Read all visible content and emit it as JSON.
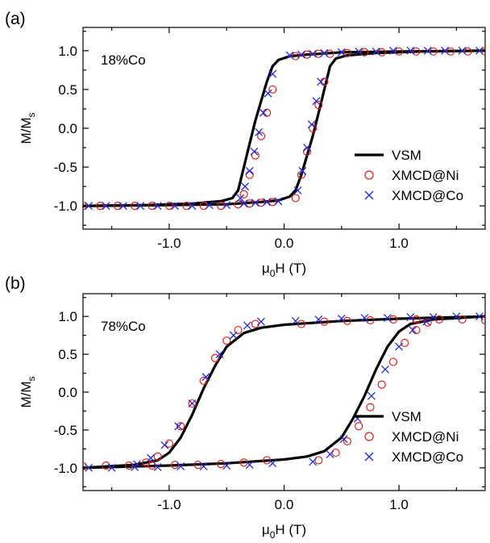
{
  "chart_data": [
    {
      "panel_label": "(a)",
      "type": "scatter",
      "annotation": "18%Co",
      "xlabel_main": "μ",
      "xlabel_sub": "0",
      "xlabel_rest": "H (T)",
      "ylabel_main": "M/M",
      "ylabel_sub": "s",
      "xlim": [
        -1.75,
        1.75
      ],
      "ylim": [
        -1.3,
        1.3
      ],
      "xticks": [
        -1.0,
        0.0,
        1.0
      ],
      "xtick_labels": [
        "-1.0",
        "0.0",
        "1.0"
      ],
      "yticks": [
        -1.0,
        -0.5,
        0.0,
        0.5,
        1.0
      ],
      "ytick_labels": [
        "-1.0",
        "-0.5",
        "0.0",
        "0.5",
        "1.0"
      ],
      "legend_position": "lower-right",
      "series": [
        {
          "name": "VSM",
          "style": "line",
          "color": "#000000",
          "descending": [
            [
              1.75,
              1.0
            ],
            [
              1.0,
              0.99
            ],
            [
              0.5,
              0.98
            ],
            [
              0.2,
              0.95
            ],
            [
              0.05,
              0.93
            ],
            [
              -0.05,
              0.88
            ],
            [
              -0.1,
              0.8
            ],
            [
              -0.15,
              0.6
            ],
            [
              -0.2,
              0.35
            ],
            [
              -0.25,
              0.1
            ],
            [
              -0.3,
              -0.2
            ],
            [
              -0.35,
              -0.5
            ],
            [
              -0.4,
              -0.8
            ],
            [
              -0.45,
              -0.9
            ],
            [
              -0.55,
              -0.94
            ],
            [
              -0.8,
              -0.97
            ],
            [
              -1.2,
              -0.99
            ],
            [
              -1.75,
              -1.0
            ]
          ],
          "ascending": [
            [
              -1.75,
              -1.0
            ],
            [
              -1.0,
              -0.99
            ],
            [
              -0.5,
              -0.98
            ],
            [
              -0.2,
              -0.95
            ],
            [
              -0.05,
              -0.93
            ],
            [
              0.05,
              -0.88
            ],
            [
              0.1,
              -0.8
            ],
            [
              0.15,
              -0.6
            ],
            [
              0.2,
              -0.35
            ],
            [
              0.25,
              -0.1
            ],
            [
              0.3,
              0.2
            ],
            [
              0.35,
              0.5
            ],
            [
              0.4,
              0.8
            ],
            [
              0.45,
              0.9
            ],
            [
              0.55,
              0.94
            ],
            [
              0.8,
              0.97
            ],
            [
              1.2,
              0.99
            ],
            [
              1.75,
              1.0
            ]
          ]
        },
        {
          "name": "XMCD@Ni",
          "style": "open-circle",
          "color": "#e0201b",
          "x": [
            1.75,
            1.6,
            1.45,
            1.3,
            1.15,
            1.0,
            0.85,
            0.7,
            0.55,
            0.4,
            0.3,
            0.2,
            0.1,
            -0.1,
            -0.15,
            -0.2,
            -0.25,
            -0.3,
            -0.35,
            -1.75,
            -1.6,
            -1.45,
            -1.3,
            -1.15,
            -1.0,
            -0.85,
            -0.7,
            -0.55,
            -0.4,
            -0.3,
            -0.2,
            -0.1,
            0.1,
            0.15,
            0.2,
            0.25,
            0.3,
            0.35
          ],
          "y": [
            0.99,
            0.99,
            0.99,
            0.99,
            0.99,
            0.99,
            0.98,
            0.98,
            0.97,
            0.96,
            0.96,
            0.95,
            0.93,
            0.5,
            0.2,
            -0.1,
            -0.35,
            -0.6,
            -0.85,
            -1.0,
            -1.0,
            -1.0,
            -1.0,
            -1.0,
            -1.0,
            -1.0,
            -1.0,
            -1.0,
            -0.98,
            -0.97,
            -0.96,
            -0.95,
            -0.9,
            -0.6,
            -0.3,
            0.0,
            0.3,
            0.6
          ]
        },
        {
          "name": "XMCD@Co",
          "style": "cross",
          "color": "#1f2bd6",
          "x": [
            1.7,
            1.55,
            1.4,
            1.25,
            1.1,
            0.95,
            0.8,
            0.65,
            0.5,
            0.35,
            0.25,
            0.15,
            0.05,
            -0.1,
            -0.14,
            -0.18,
            -0.22,
            -0.26,
            -0.3,
            -0.34,
            -0.38,
            -1.7,
            -1.55,
            -1.4,
            -1.25,
            -1.1,
            -0.95,
            -0.8,
            -0.65,
            -0.5,
            -0.35,
            -0.25,
            -0.15,
            -0.05,
            0.12,
            0.16,
            0.2,
            0.24,
            0.28,
            0.32
          ],
          "y": [
            1.0,
            1.0,
            1.0,
            1.0,
            1.0,
            1.0,
            0.99,
            0.99,
            0.98,
            0.97,
            0.96,
            0.95,
            0.94,
            0.7,
            0.45,
            0.2,
            -0.05,
            -0.3,
            -0.55,
            -0.75,
            -0.9,
            -1.0,
            -1.0,
            -1.0,
            -1.0,
            -1.0,
            -1.0,
            -1.0,
            -0.99,
            -0.99,
            -0.97,
            -0.96,
            -0.95,
            -0.94,
            -0.8,
            -0.55,
            -0.25,
            0.05,
            0.35,
            0.6
          ]
        }
      ]
    },
    {
      "panel_label": "(b)",
      "type": "scatter",
      "annotation": "78%Co",
      "xlabel_main": "μ",
      "xlabel_sub": "0",
      "xlabel_rest": "H (T)",
      "ylabel_main": "M/M",
      "ylabel_sub": "s",
      "xlim": [
        -1.75,
        1.75
      ],
      "ylim": [
        -1.3,
        1.3
      ],
      "xticks": [
        -1.0,
        0.0,
        1.0
      ],
      "xtick_labels": [
        "-1.0",
        "0.0",
        "1.0"
      ],
      "yticks": [
        -1.0,
        -0.5,
        0.0,
        0.5,
        1.0
      ],
      "ytick_labels": [
        "-1.0",
        "-0.5",
        "0.0",
        "0.5",
        "1.0"
      ],
      "legend_position": "lower-right",
      "series": [
        {
          "name": "VSM",
          "style": "line",
          "color": "#000000",
          "descending": [
            [
              1.75,
              1.0
            ],
            [
              1.0,
              0.97
            ],
            [
              0.5,
              0.94
            ],
            [
              0.0,
              0.89
            ],
            [
              -0.2,
              0.85
            ],
            [
              -0.35,
              0.78
            ],
            [
              -0.5,
              0.6
            ],
            [
              -0.6,
              0.35
            ],
            [
              -0.7,
              0.05
            ],
            [
              -0.8,
              -0.3
            ],
            [
              -0.9,
              -0.6
            ],
            [
              -1.0,
              -0.8
            ],
            [
              -1.1,
              -0.9
            ],
            [
              -1.3,
              -0.96
            ],
            [
              -1.75,
              -1.0
            ]
          ],
          "ascending": [
            [
              -1.75,
              -1.0
            ],
            [
              -1.0,
              -0.97
            ],
            [
              -0.5,
              -0.94
            ],
            [
              0.0,
              -0.89
            ],
            [
              0.2,
              -0.85
            ],
            [
              0.35,
              -0.78
            ],
            [
              0.5,
              -0.6
            ],
            [
              0.6,
              -0.35
            ],
            [
              0.7,
              -0.05
            ],
            [
              0.8,
              0.3
            ],
            [
              0.9,
              0.6
            ],
            [
              1.0,
              0.8
            ],
            [
              1.1,
              0.9
            ],
            [
              1.3,
              0.96
            ],
            [
              1.75,
              1.0
            ]
          ]
        },
        {
          "name": "XMCD@Ni",
          "style": "open-circle",
          "color": "#e0201b",
          "x": [
            1.75,
            1.55,
            1.35,
            1.15,
            0.95,
            0.75,
            0.55,
            0.35,
            0.15,
            -0.25,
            -0.4,
            -0.5,
            -0.6,
            -0.7,
            -0.8,
            -0.9,
            -1.0,
            -1.1,
            -1.2,
            -1.75,
            -1.55,
            -1.35,
            -1.15,
            -0.95,
            -0.75,
            -0.55,
            -0.35,
            -0.15,
            0.3,
            0.45,
            0.55,
            0.65,
            0.75,
            0.85,
            0.95,
            1.05,
            1.15,
            1.25
          ],
          "y": [
            0.95,
            0.96,
            0.96,
            0.96,
            0.96,
            0.95,
            0.94,
            0.93,
            0.9,
            0.9,
            0.82,
            0.68,
            0.45,
            0.15,
            -0.15,
            -0.45,
            -0.68,
            -0.85,
            -0.93,
            -0.98,
            -0.97,
            -0.97,
            -0.97,
            -0.96,
            -0.96,
            -0.95,
            -0.93,
            -0.9,
            -0.9,
            -0.8,
            -0.65,
            -0.45,
            -0.2,
            0.1,
            0.4,
            0.65,
            0.82,
            0.92
          ]
        },
        {
          "name": "XMCD@Co",
          "style": "cross",
          "color": "#1f2bd6",
          "x": [
            1.7,
            1.5,
            1.3,
            1.1,
            0.9,
            0.7,
            0.5,
            0.3,
            0.1,
            -0.2,
            -0.32,
            -0.44,
            -0.56,
            -0.68,
            -0.8,
            -0.92,
            -1.04,
            -1.16,
            -1.28,
            -1.7,
            -1.5,
            -1.3,
            -1.1,
            -0.9,
            -0.7,
            -0.5,
            -0.3,
            -0.1,
            0.25,
            0.4,
            0.52,
            0.64,
            0.76,
            0.88,
            1.0,
            1.12,
            1.24
          ],
          "y": [
            1.0,
            1.0,
            0.99,
            0.99,
            0.98,
            0.98,
            0.97,
            0.96,
            0.94,
            0.93,
            0.88,
            0.75,
            0.5,
            0.2,
            -0.15,
            -0.45,
            -0.7,
            -0.87,
            -0.95,
            -1.0,
            -1.0,
            -0.99,
            -0.99,
            -0.98,
            -0.98,
            -0.97,
            -0.96,
            -0.94,
            -0.92,
            -0.82,
            -0.62,
            -0.35,
            -0.05,
            0.3,
            0.6,
            0.82,
            0.93
          ]
        }
      ]
    }
  ]
}
